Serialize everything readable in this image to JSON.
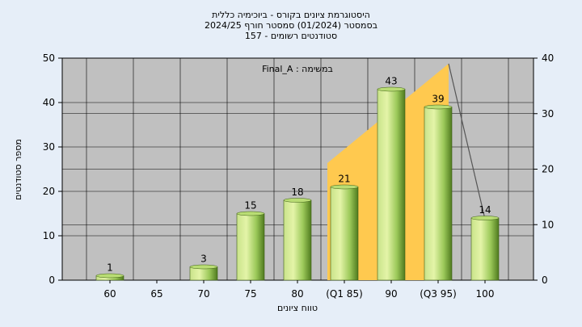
{
  "title_lines": [
    "היסטוגרמת ציונים בקורס - ביוכימיה כללית",
    "בסמסטר  (01/2024)  סמסטר חורף 2024/25",
    "סטודנטים רשומים - 157"
  ],
  "chart_data": {
    "type": "bar",
    "categories": [
      "60",
      "65",
      "70",
      "75",
      "80",
      "(Q1 85)",
      "90",
      "(Q3 95)",
      "100"
    ],
    "values": [
      1,
      0,
      3,
      15,
      18,
      21,
      43,
      39,
      14
    ],
    "data_labels": [
      "1",
      "",
      "3",
      "15",
      "18",
      "21",
      "43",
      "39",
      "14"
    ],
    "xlabel": "טווח ציונים",
    "ylabel": "מספר סטודנטים",
    "ylim": [
      0,
      50
    ],
    "y_ticks": [
      0,
      10,
      20,
      30,
      40,
      50
    ],
    "y2lim": [
      0,
      40
    ],
    "y2_ticks": [
      0,
      10,
      20,
      30,
      40
    ],
    "inner_label": "Final_A : במשימה",
    "grid": true,
    "colors": {
      "plot_bg": "#c0c0c0",
      "page_bg": "#e6eef8",
      "bar_light": "#e4f4a8",
      "bar_mid": "#9cc95a",
      "bar_dark": "#4f7a1e",
      "area_fill": "#ffc94f",
      "line": "#555555"
    },
    "overlay": {
      "area_start_category": "(Q1 85)",
      "area_end_category": "(Q3 95)",
      "area_peak_y2": 39,
      "line_end_category": "100",
      "line_end_y2": 11
    }
  }
}
